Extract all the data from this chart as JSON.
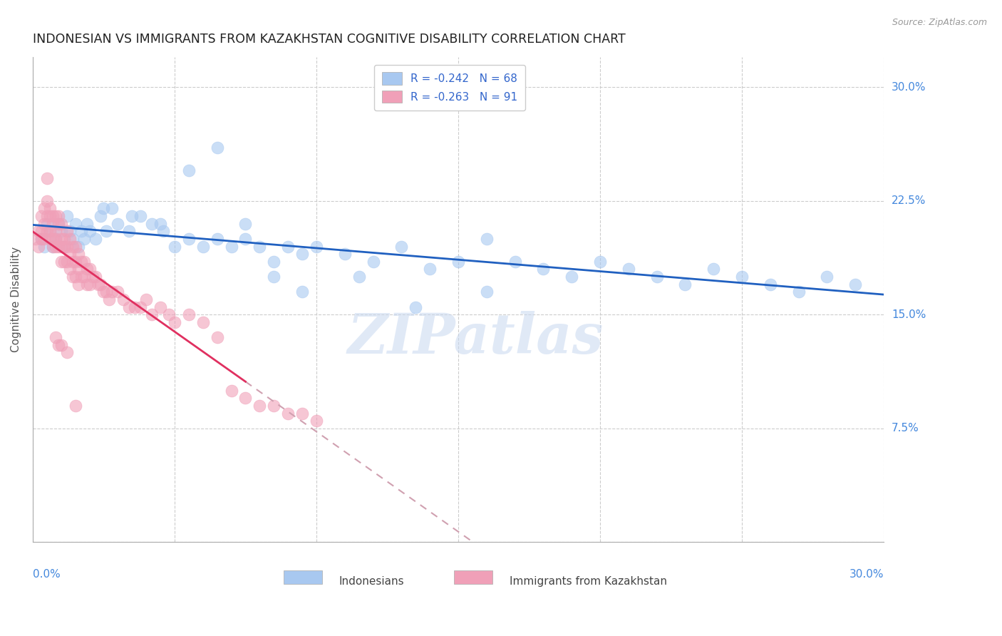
{
  "title": "INDONESIAN VS IMMIGRANTS FROM KAZAKHSTAN COGNITIVE DISABILITY CORRELATION CHART",
  "source": "Source: ZipAtlas.com",
  "ylabel": "Cognitive Disability",
  "right_yticks": [
    "30.0%",
    "22.5%",
    "15.0%",
    "7.5%"
  ],
  "right_ytick_vals": [
    0.3,
    0.225,
    0.15,
    0.075
  ],
  "xmin": 0.0,
  "xmax": 0.3,
  "ymin": 0.0,
  "ymax": 0.32,
  "color_blue": "#A8C8F0",
  "color_pink": "#F0A0B8",
  "line_blue": "#2060C0",
  "line_pink": "#E03060",
  "line_dashed_color": "#D0A0B0",
  "bg_color": "#FFFFFF",
  "grid_color": "#CCCCCC",
  "indonesian_x": [
    0.003,
    0.004,
    0.005,
    0.006,
    0.007,
    0.008,
    0.009,
    0.01,
    0.011,
    0.012,
    0.013,
    0.014,
    0.015,
    0.016,
    0.017,
    0.018,
    0.019,
    0.02,
    0.022,
    0.024,
    0.026,
    0.028,
    0.03,
    0.034,
    0.038,
    0.042,
    0.046,
    0.05,
    0.055,
    0.06,
    0.065,
    0.07,
    0.075,
    0.08,
    0.085,
    0.09,
    0.095,
    0.1,
    0.11,
    0.12,
    0.13,
    0.14,
    0.15,
    0.16,
    0.17,
    0.18,
    0.19,
    0.2,
    0.21,
    0.22,
    0.23,
    0.24,
    0.25,
    0.26,
    0.27,
    0.28,
    0.29,
    0.025,
    0.035,
    0.045,
    0.055,
    0.065,
    0.075,
    0.085,
    0.095,
    0.115,
    0.135,
    0.16
  ],
  "indonesian_y": [
    0.2,
    0.195,
    0.21,
    0.205,
    0.195,
    0.2,
    0.21,
    0.205,
    0.195,
    0.215,
    0.205,
    0.2,
    0.21,
    0.195,
    0.205,
    0.2,
    0.21,
    0.205,
    0.2,
    0.215,
    0.205,
    0.22,
    0.21,
    0.205,
    0.215,
    0.21,
    0.205,
    0.195,
    0.2,
    0.195,
    0.2,
    0.195,
    0.21,
    0.195,
    0.185,
    0.195,
    0.19,
    0.195,
    0.19,
    0.185,
    0.195,
    0.18,
    0.185,
    0.2,
    0.185,
    0.18,
    0.175,
    0.185,
    0.18,
    0.175,
    0.17,
    0.18,
    0.175,
    0.17,
    0.165,
    0.175,
    0.17,
    0.22,
    0.215,
    0.21,
    0.245,
    0.26,
    0.2,
    0.175,
    0.165,
    0.175,
    0.155,
    0.165
  ],
  "kazakh_x": [
    0.001,
    0.002,
    0.002,
    0.003,
    0.003,
    0.003,
    0.004,
    0.004,
    0.004,
    0.005,
    0.005,
    0.005,
    0.005,
    0.006,
    0.006,
    0.006,
    0.006,
    0.007,
    0.007,
    0.007,
    0.007,
    0.008,
    0.008,
    0.008,
    0.008,
    0.009,
    0.009,
    0.009,
    0.01,
    0.01,
    0.01,
    0.01,
    0.011,
    0.011,
    0.011,
    0.012,
    0.012,
    0.012,
    0.013,
    0.013,
    0.013,
    0.014,
    0.014,
    0.014,
    0.015,
    0.015,
    0.015,
    0.016,
    0.016,
    0.016,
    0.017,
    0.017,
    0.018,
    0.018,
    0.019,
    0.019,
    0.02,
    0.02,
    0.021,
    0.022,
    0.023,
    0.024,
    0.025,
    0.026,
    0.027,
    0.028,
    0.03,
    0.032,
    0.034,
    0.036,
    0.038,
    0.04,
    0.042,
    0.045,
    0.048,
    0.05,
    0.055,
    0.06,
    0.065,
    0.07,
    0.075,
    0.08,
    0.085,
    0.09,
    0.095,
    0.1,
    0.008,
    0.009,
    0.01,
    0.012,
    0.015
  ],
  "kazakh_y": [
    0.2,
    0.205,
    0.195,
    0.215,
    0.205,
    0.2,
    0.22,
    0.21,
    0.2,
    0.24,
    0.225,
    0.215,
    0.205,
    0.22,
    0.215,
    0.205,
    0.2,
    0.215,
    0.21,
    0.2,
    0.195,
    0.215,
    0.205,
    0.2,
    0.195,
    0.215,
    0.21,
    0.195,
    0.21,
    0.2,
    0.195,
    0.185,
    0.2,
    0.195,
    0.185,
    0.205,
    0.195,
    0.185,
    0.2,
    0.19,
    0.18,
    0.195,
    0.185,
    0.175,
    0.195,
    0.185,
    0.175,
    0.19,
    0.18,
    0.17,
    0.185,
    0.175,
    0.185,
    0.175,
    0.18,
    0.17,
    0.18,
    0.17,
    0.175,
    0.175,
    0.17,
    0.17,
    0.165,
    0.165,
    0.16,
    0.165,
    0.165,
    0.16,
    0.155,
    0.155,
    0.155,
    0.16,
    0.15,
    0.155,
    0.15,
    0.145,
    0.15,
    0.145,
    0.135,
    0.1,
    0.095,
    0.09,
    0.09,
    0.085,
    0.085,
    0.08,
    0.135,
    0.13,
    0.13,
    0.125,
    0.09
  ],
  "watermark": "ZIPatlas",
  "title_color": "#222222",
  "right_label_color": "#4488DD",
  "bottom_label_color": "#4488DD"
}
